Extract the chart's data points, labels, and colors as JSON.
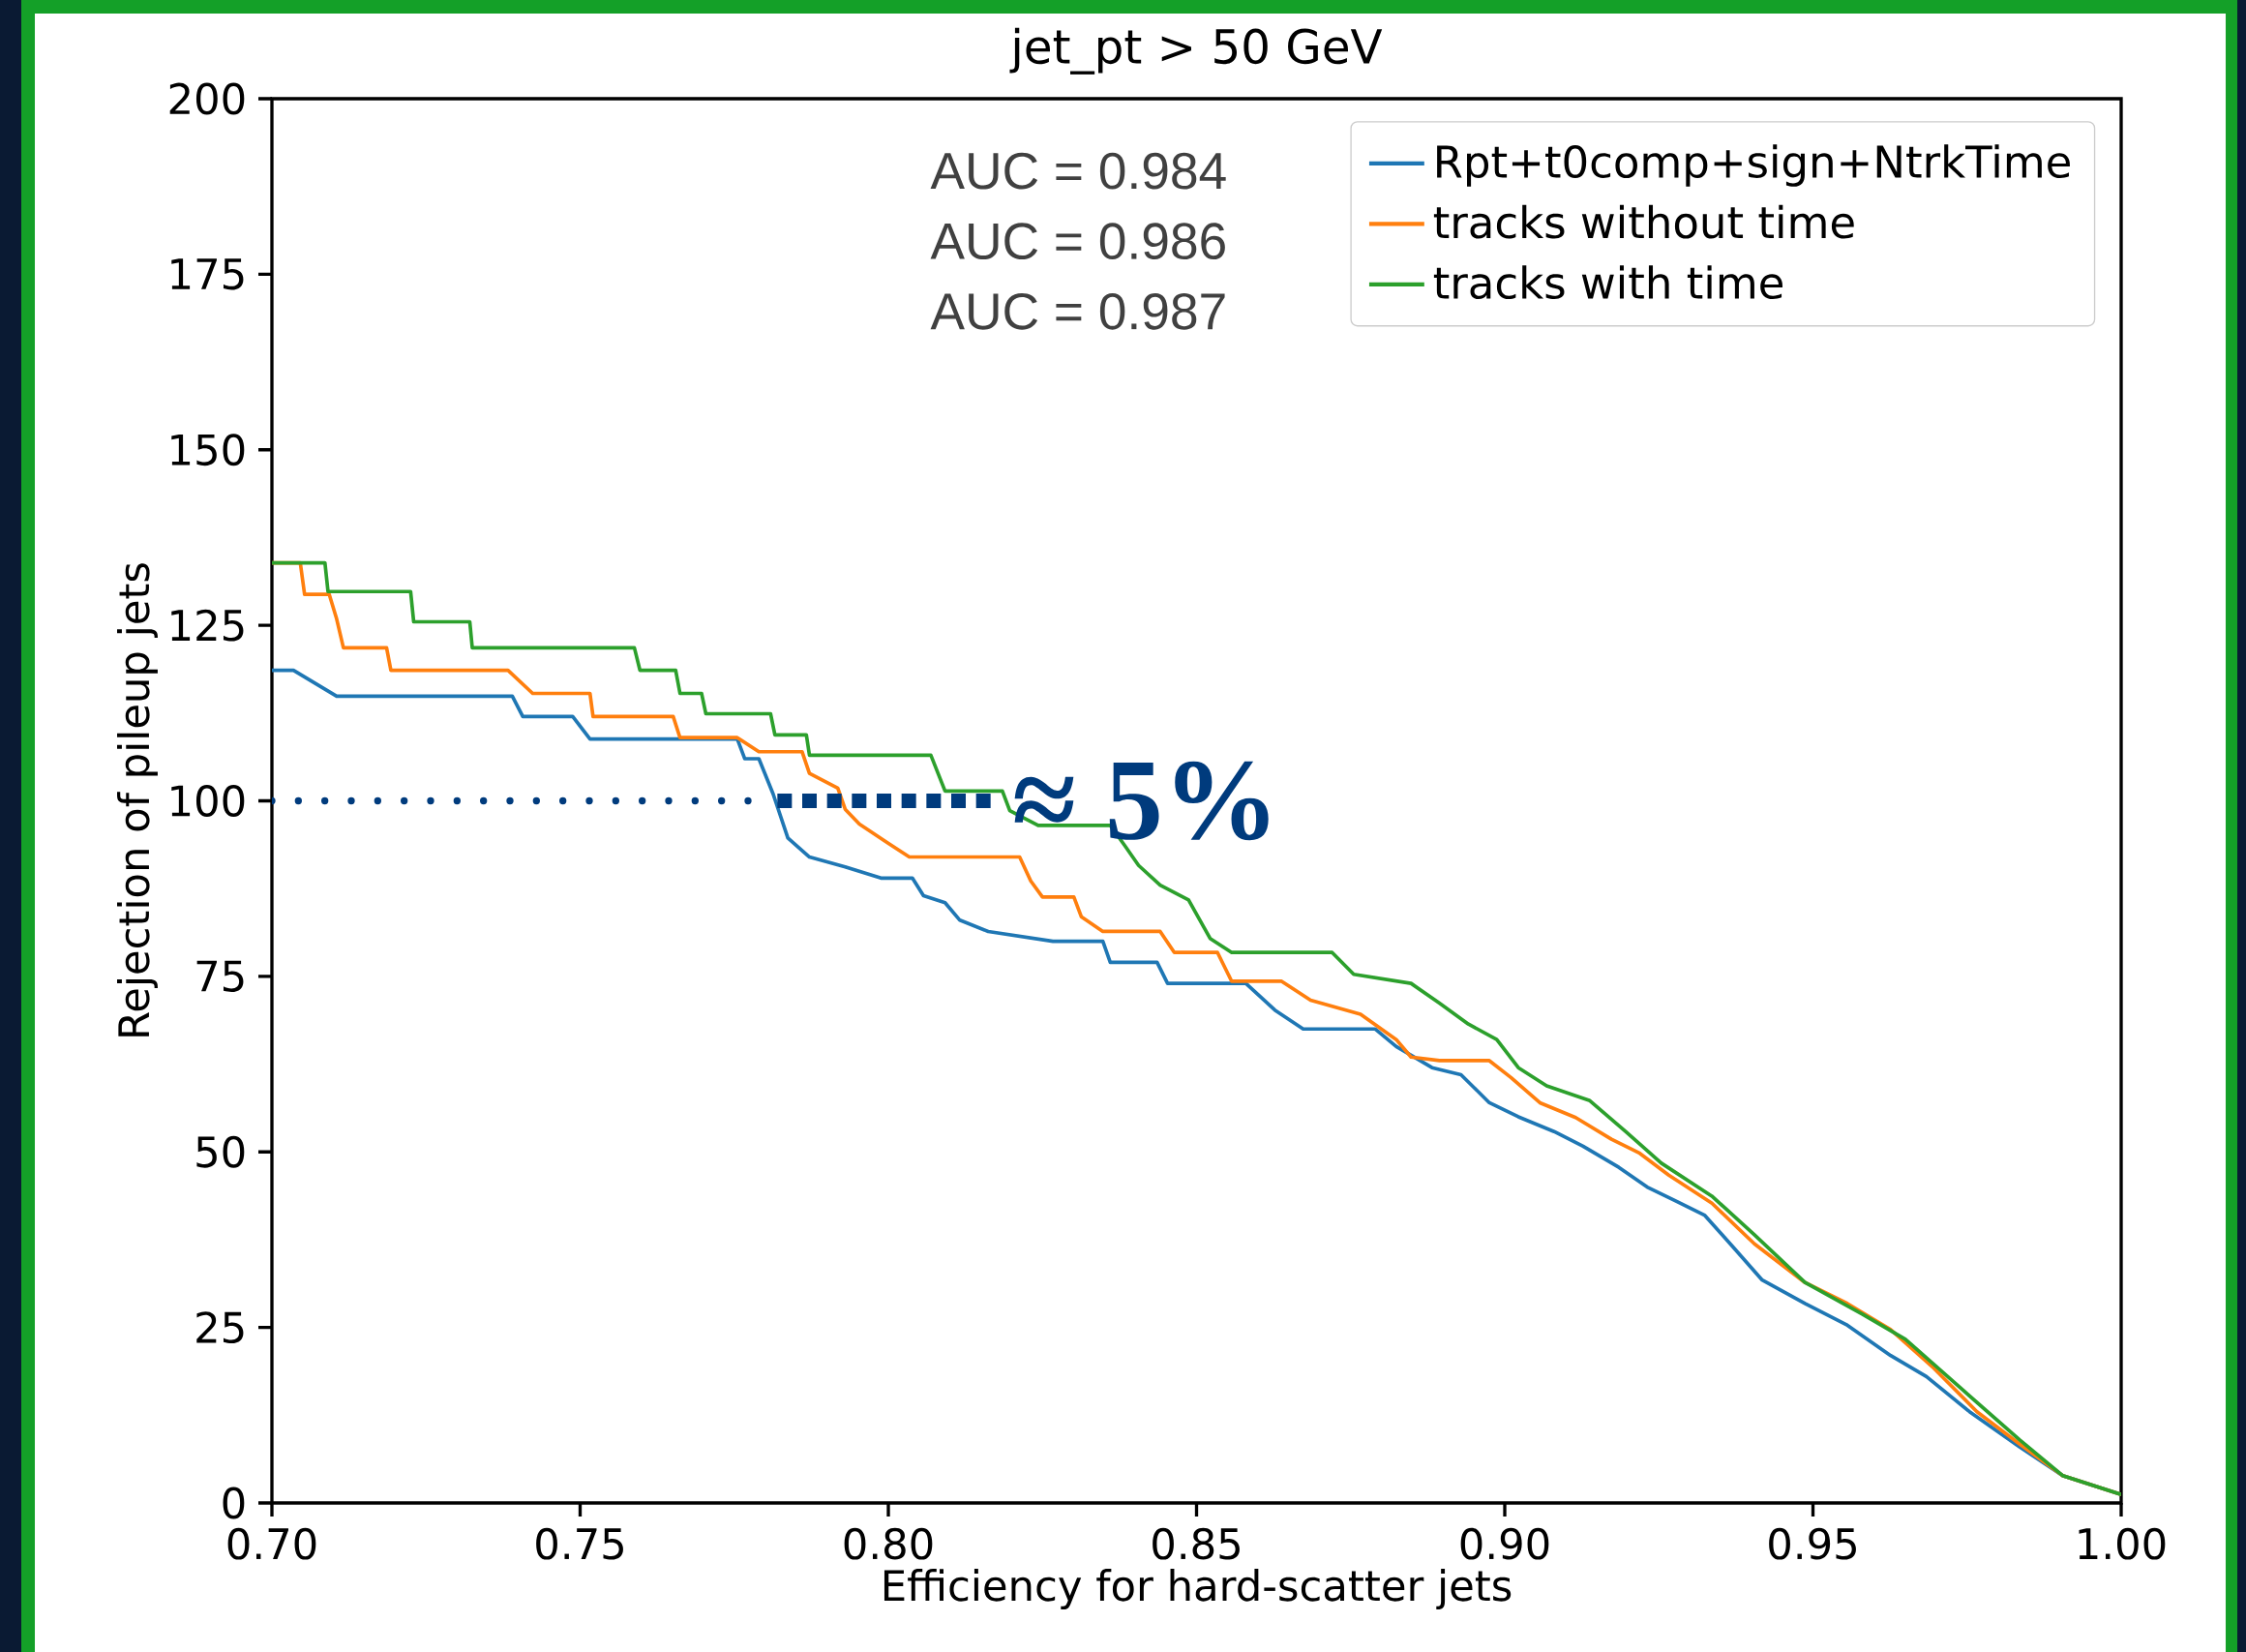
{
  "chart_data": {
    "type": "line",
    "title": "jet_pt > 50 GeV",
    "xlabel": "Efficiency for hard-scatter jets",
    "ylabel": "Rejection of pileup jets",
    "xlim": [
      0.7,
      1.0
    ],
    "xticks": [
      {
        "value": 0.7,
        "label": "0.70"
      },
      {
        "value": 0.75,
        "label": "0.75"
      },
      {
        "value": 0.8,
        "label": "0.80"
      },
      {
        "value": 0.85,
        "label": "0.85"
      },
      {
        "value": 0.9,
        "label": "0.90"
      },
      {
        "value": 0.95,
        "label": "0.95"
      },
      {
        "value": 1.0,
        "label": "1.00"
      }
    ],
    "ylim": [
      0,
      200
    ],
    "yticks": [
      0,
      25,
      50,
      75,
      100,
      125,
      150,
      175,
      200
    ],
    "legend": "top right",
    "series": [
      {
        "name": "Rpt+t0comp+sign+NtrkTime",
        "color": "#1f77b4",
        "x": [
          0.7,
          0.7035,
          0.7105,
          0.739,
          0.7407,
          0.7488,
          0.7516,
          0.7755,
          0.7767,
          0.779,
          0.7813,
          0.7837,
          0.7872,
          0.793,
          0.7988,
          0.8039,
          0.8057,
          0.8092,
          0.8116,
          0.8162,
          0.8267,
          0.8348,
          0.836,
          0.8436,
          0.8453,
          0.858,
          0.8627,
          0.8673,
          0.879,
          0.8824,
          0.8882,
          0.8929,
          0.8975,
          0.9022,
          0.908,
          0.9127,
          0.9185,
          0.9231,
          0.9278,
          0.9324,
          0.937,
          0.9417,
          0.9487,
          0.9556,
          0.9626,
          0.9684,
          0.9754,
          0.9835,
          0.9905,
          1.0
        ],
        "values": [
          118.6,
          118.6,
          114.9,
          114.9,
          112,
          112,
          108.8,
          108.8,
          106,
          106,
          101,
          94.7,
          92,
          90.6,
          89,
          89,
          86.5,
          85.5,
          83,
          81.4,
          80,
          80,
          77,
          77,
          74,
          74,
          70.2,
          67.5,
          67.5,
          65,
          62,
          61,
          57,
          55,
          52.9,
          50.8,
          47.8,
          45,
          43,
          41,
          36.5,
          31.8,
          28.4,
          25.3,
          21,
          18,
          13,
          8,
          3.9,
          1.2
        ]
      },
      {
        "name": "tracks without time",
        "color": "#ff7f0e",
        "x": [
          0.7,
          0.7046,
          0.7053,
          0.7093,
          0.7105,
          0.7116,
          0.7186,
          0.7193,
          0.7383,
          0.7423,
          0.7516,
          0.7521,
          0.7651,
          0.7662,
          0.7755,
          0.779,
          0.786,
          0.7872,
          0.7918,
          0.793,
          0.7953,
          0.7999,
          0.8034,
          0.8213,
          0.8231,
          0.825,
          0.8301,
          0.8313,
          0.8348,
          0.8441,
          0.8464,
          0.8534,
          0.8557,
          0.8638,
          0.8685,
          0.8766,
          0.8824,
          0.8848,
          0.8894,
          0.8975,
          0.901,
          0.9057,
          0.9115,
          0.9173,
          0.9219,
          0.9266,
          0.9336,
          0.9405,
          0.9487,
          0.9556,
          0.9626,
          0.9696,
          0.9766,
          0.9835,
          0.9905,
          1.0
        ],
        "values": [
          133.9,
          133.9,
          129.4,
          129.4,
          125.9,
          121.8,
          121.8,
          118.6,
          118.6,
          115.3,
          115.3,
          112,
          112,
          109,
          109,
          107,
          107,
          103.9,
          101.8,
          98.8,
          96.7,
          94,
          92,
          92,
          88.6,
          86.3,
          86.3,
          83.5,
          81.4,
          81.4,
          78.4,
          78.4,
          74.3,
          74.3,
          71.6,
          69.6,
          66,
          63.5,
          63,
          63,
          60.6,
          57,
          54.9,
          51.8,
          49.8,
          46.7,
          42.7,
          36.9,
          31.4,
          28.4,
          24.7,
          19.2,
          13,
          8.4,
          3.9,
          1.2
        ]
      },
      {
        "name": "tracks with time",
        "color": "#2ca02c",
        "x": [
          0.7,
          0.7086,
          0.7091,
          0.7225,
          0.723,
          0.7321,
          0.7325,
          0.7588,
          0.7597,
          0.7655,
          0.7662,
          0.7697,
          0.7704,
          0.7809,
          0.7816,
          0.7867,
          0.7872,
          0.8069,
          0.8092,
          0.8185,
          0.8197,
          0.8243,
          0.836,
          0.8383,
          0.8406,
          0.8441,
          0.8487,
          0.8522,
          0.8557,
          0.872,
          0.8755,
          0.8848,
          0.8894,
          0.8941,
          0.8987,
          0.9022,
          0.9068,
          0.9138,
          0.9196,
          0.9254,
          0.9336,
          0.9405,
          0.9487,
          0.958,
          0.965,
          0.9743,
          0.9835,
          0.9905,
          1.0
        ],
        "values": [
          133.9,
          133.9,
          129.8,
          129.8,
          125.5,
          125.5,
          121.8,
          121.8,
          118.6,
          118.6,
          115.3,
          115.3,
          112.4,
          112.4,
          109.4,
          109.4,
          106.5,
          106.5,
          101.4,
          101.4,
          98.6,
          96.5,
          96.5,
          93.7,
          90.8,
          88,
          85.9,
          80.4,
          78.4,
          78.4,
          75.3,
          74,
          71.2,
          68.2,
          66,
          62,
          59.4,
          57.3,
          52.9,
          48.4,
          43.7,
          38.2,
          31.4,
          26.9,
          23.3,
          16.1,
          9,
          3.9,
          1.2
        ]
      },
      {
        "color": "#003b7d",
        "line_style": "dotted",
        "x": [
          0.7,
          0.78
        ],
        "values": [
          100,
          100
        ]
      },
      {
        "color": "#003b7d",
        "line_style": "dashed",
        "x": [
          0.782,
          0.818
        ],
        "values": [
          100,
          100
        ]
      }
    ],
    "annotations": [
      "AUC = 0.984",
      "AUC = 0.986",
      "AUC = 0.987",
      {
        "text": "≈ 5%",
        "x": 0.82,
        "y": 100
      }
    ]
  }
}
